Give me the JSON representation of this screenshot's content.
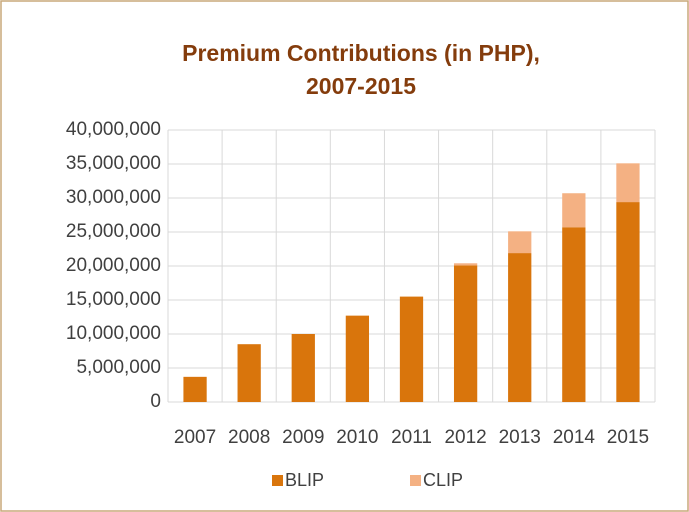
{
  "chart_data": {
    "type": "stacked_bar",
    "title": [
      "Premium Contributions (in PHP),",
      "2007-2015"
    ],
    "categories": [
      "2007",
      "2008",
      "2009",
      "2010",
      "2011",
      "2012",
      "2013",
      "2014",
      "2015"
    ],
    "series": [
      {
        "name": "BLIP",
        "color": "#d9750c",
        "values": [
          3700000,
          8500000,
          10000000,
          12700000,
          15500000,
          20100000,
          21900000,
          25700000,
          29400000
        ]
      },
      {
        "name": "CLIP",
        "color": "#f4b183",
        "values": [
          0,
          0,
          0,
          0,
          0,
          300000,
          3200000,
          5000000,
          5700000
        ]
      }
    ],
    "ylim": [
      0,
      40000000
    ],
    "yticks": [
      0,
      {
        "value": 5000000,
        "label": "5,000,000"
      },
      {
        "value": 10000000,
        "label": "10,000,000"
      },
      {
        "value": 15000000,
        "label": "15,000,000"
      },
      {
        "value": 20000000,
        "label": "20,000,000"
      },
      {
        "value": 25000000,
        "label": "25,000,000"
      },
      {
        "value": 30000000,
        "label": "30,000,000"
      },
      {
        "value": 35000000,
        "label": "35,000,000"
      },
      {
        "value": 40000000,
        "label": "40,000,000"
      }
    ],
    "grid": true,
    "legend": "bottom"
  }
}
